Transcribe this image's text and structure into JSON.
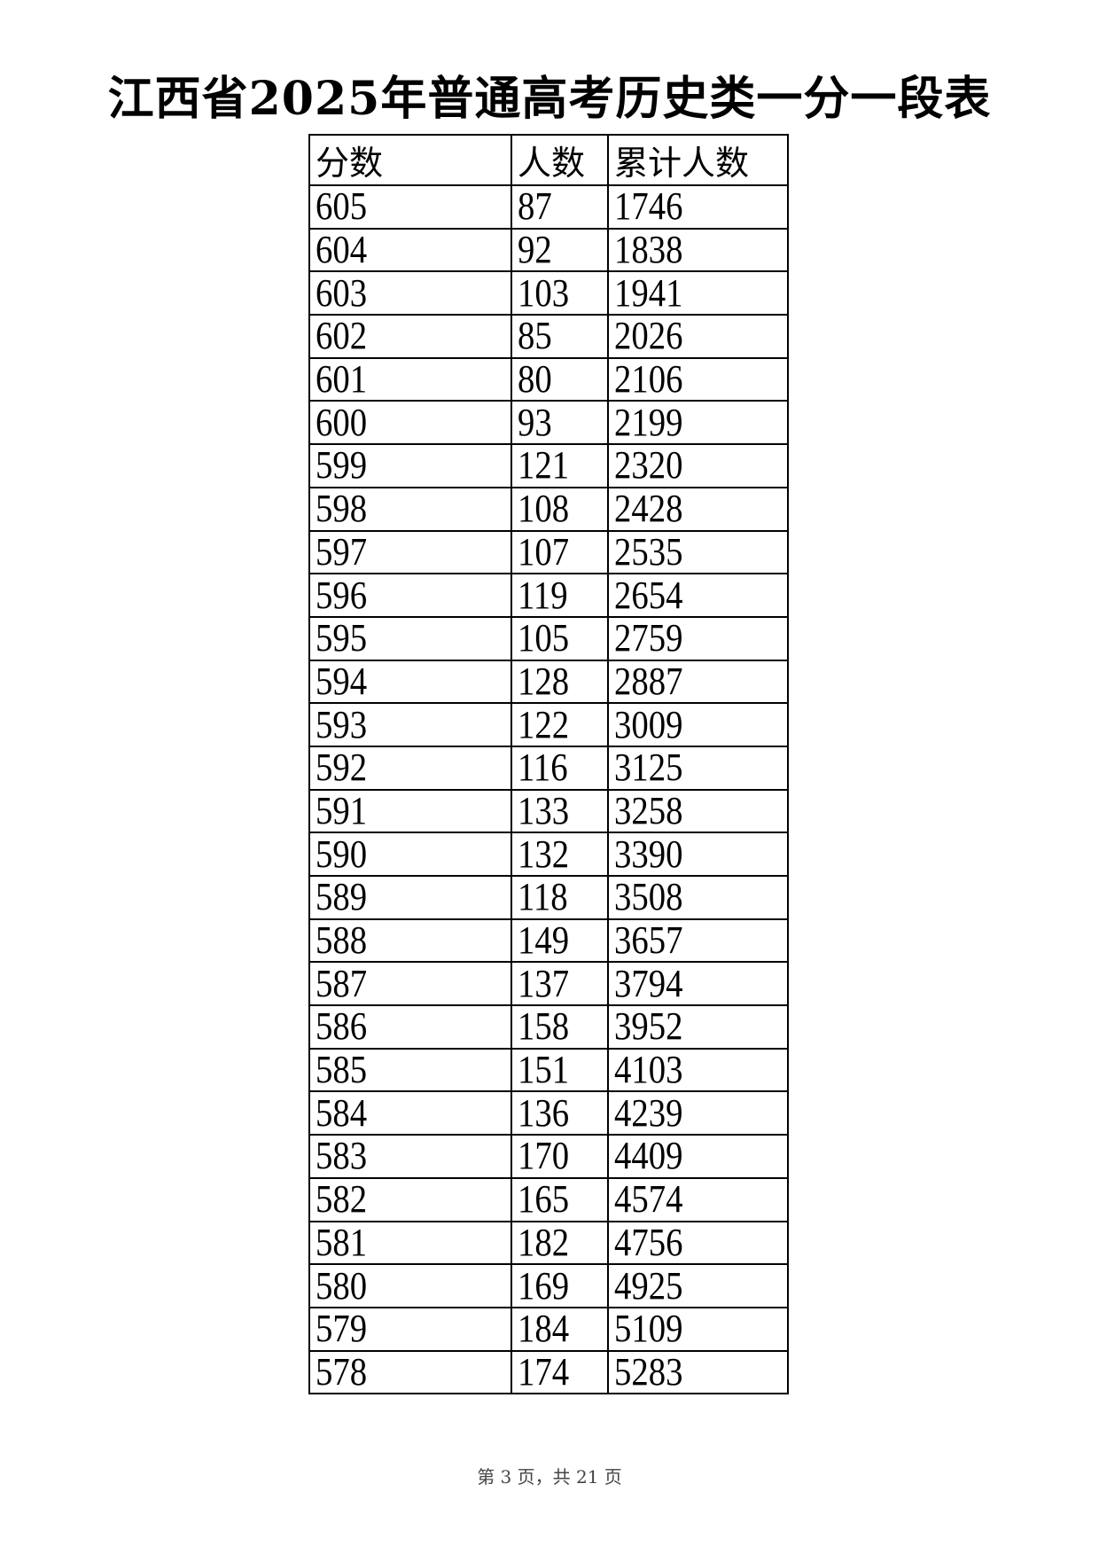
{
  "title": "江西省2025年普通高考历史类一分一段表",
  "table": {
    "headers": [
      "分数",
      "人数",
      "累计人数"
    ],
    "rows": [
      [
        "605",
        "87",
        "1746"
      ],
      [
        "604",
        "92",
        "1838"
      ],
      [
        "603",
        "103",
        "1941"
      ],
      [
        "602",
        "85",
        "2026"
      ],
      [
        "601",
        "80",
        "2106"
      ],
      [
        "600",
        "93",
        "2199"
      ],
      [
        "599",
        "121",
        "2320"
      ],
      [
        "598",
        "108",
        "2428"
      ],
      [
        "597",
        "107",
        "2535"
      ],
      [
        "596",
        "119",
        "2654"
      ],
      [
        "595",
        "105",
        "2759"
      ],
      [
        "594",
        "128",
        "2887"
      ],
      [
        "593",
        "122",
        "3009"
      ],
      [
        "592",
        "116",
        "3125"
      ],
      [
        "591",
        "133",
        "3258"
      ],
      [
        "590",
        "132",
        "3390"
      ],
      [
        "589",
        "118",
        "3508"
      ],
      [
        "588",
        "149",
        "3657"
      ],
      [
        "587",
        "137",
        "3794"
      ],
      [
        "586",
        "158",
        "3952"
      ],
      [
        "585",
        "151",
        "4103"
      ],
      [
        "584",
        "136",
        "4239"
      ],
      [
        "583",
        "170",
        "4409"
      ],
      [
        "582",
        "165",
        "4574"
      ],
      [
        "581",
        "182",
        "4756"
      ],
      [
        "580",
        "169",
        "4925"
      ],
      [
        "579",
        "184",
        "5109"
      ],
      [
        "578",
        "174",
        "5283"
      ]
    ]
  },
  "footer": "第 3 页，共 21 页"
}
